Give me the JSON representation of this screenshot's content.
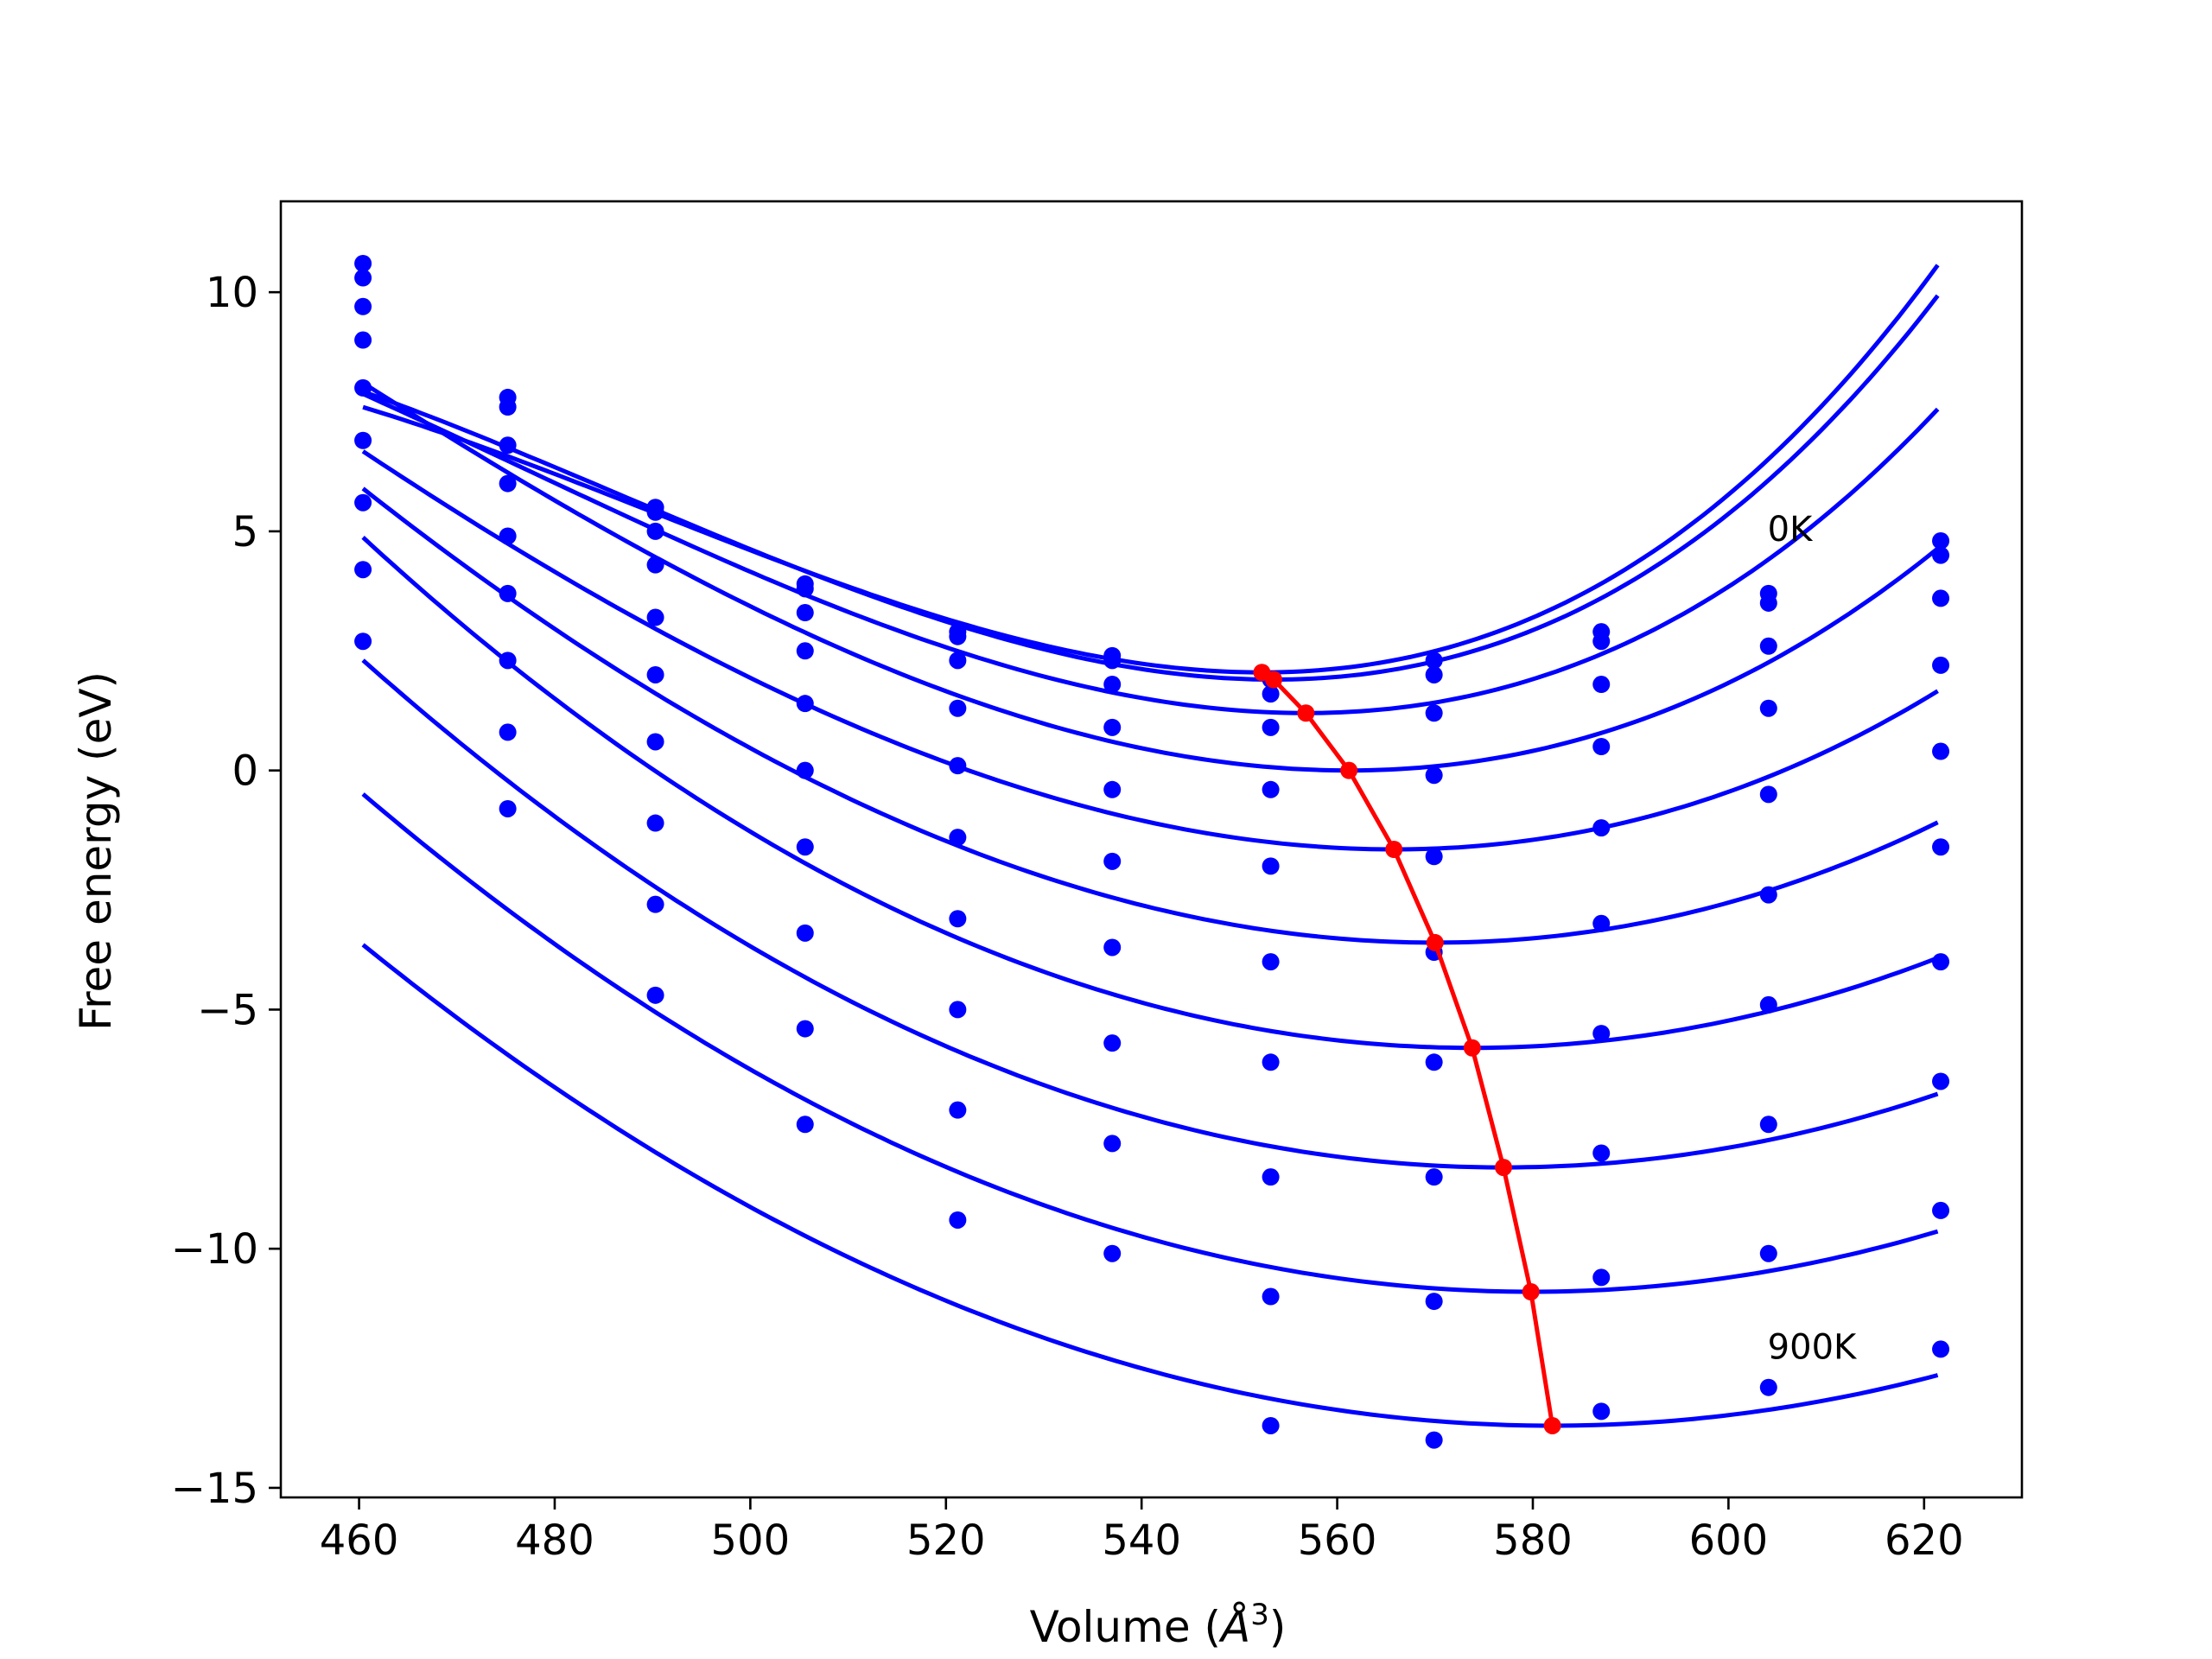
{
  "chart_data": {
    "type": "line",
    "xlabel_prefix": "Volume (",
    "xlabel_symbol": "Å",
    "xlabel_exp": "3",
    "xlabel_suffix": ")",
    "ylabel": "Free energy (eV)",
    "xlim": [
      452,
      630
    ],
    "ylim": [
      -15.2,
      11.9
    ],
    "xticks": [
      460,
      480,
      500,
      520,
      540,
      560,
      580,
      600,
      620
    ],
    "yticks": [
      -15,
      -10,
      -5,
      0,
      5,
      10
    ],
    "xtick_labels": [
      "460",
      "480",
      "500",
      "520",
      "540",
      "560",
      "580",
      "600",
      "620"
    ],
    "ytick_labels": [
      "−15",
      "−10",
      "−5",
      "0",
      "5",
      "10"
    ],
    "grid": false,
    "annotations": [
      {
        "text": "0K",
        "x": 604,
        "y": 4.8
      },
      {
        "text": "900K",
        "x": 604,
        "y": -12.3
      }
    ],
    "volumes": [
      460.4,
      475.2,
      490.3,
      505.6,
      521.2,
      537.0,
      553.2,
      569.9,
      587.0,
      604.1,
      621.7
    ],
    "series": [
      {
        "data": [
          10.6,
          7.8,
          5.5,
          3.9,
          2.9,
          2.4,
          1.9,
          2.3,
          2.9,
          3.7,
          4.8
        ],
        "fit": {
          "min_v": 552.3,
          "min_f": 2.05,
          "a": 0.0013,
          "b": 7e-06
        }
      },
      {
        "data": [
          10.3,
          7.6,
          5.4,
          3.8,
          2.8,
          2.3,
          1.6,
          2.0,
          2.7,
          3.5,
          4.5
        ],
        "fit": {
          "min_v": 553.5,
          "min_f": 1.9,
          "a": 0.0013,
          "b": 6.5e-06
        }
      },
      {
        "data": [
          9.7,
          6.8,
          5.0,
          3.3,
          2.3,
          1.8,
          0.9,
          1.2,
          1.8,
          2.6,
          3.6
        ],
        "fit": {
          "min_v": 556.8,
          "min_f": 1.2,
          "a": 0.0012,
          "b": 5e-06
        }
      },
      {
        "data": [
          9.0,
          6.0,
          4.3,
          2.5,
          1.3,
          0.9,
          -0.4,
          -0.1,
          0.5,
          1.3,
          2.2
        ],
        "fit": {
          "min_v": 561.2,
          "min_f": 0.0,
          "a": 0.0011,
          "b": 3e-06
        }
      },
      {
        "data": [
          8.0,
          4.9,
          3.2,
          1.4,
          0.1,
          -0.4,
          -2.0,
          -1.8,
          -1.2,
          -0.5,
          0.4
        ],
        "fit": {
          "min_v": 565.8,
          "min_f": -1.65,
          "a": 0.00096,
          "b": 2e-06
        }
      },
      {
        "data": [
          6.9,
          3.7,
          2.0,
          0.0,
          -1.4,
          -1.9,
          -4.0,
          -3.8,
          -3.2,
          -2.6,
          -1.6
        ],
        "fit": {
          "min_v": 570.0,
          "min_f": -3.6,
          "a": 0.0009,
          "b": 1e-06
        }
      },
      {
        "data": [
          5.6,
          2.3,
          0.6,
          -1.6,
          -3.1,
          -3.7,
          -6.1,
          -6.1,
          -5.5,
          -4.9,
          -4.0
        ],
        "fit": {
          "min_v": 573.8,
          "min_f": -5.8,
          "a": 0.00083,
          "b": 0
        }
      },
      {
        "data": [
          4.2,
          0.8,
          -1.1,
          -3.4,
          -5.0,
          -5.7,
          -8.5,
          -8.5,
          -8.0,
          -7.4,
          -6.5
        ],
        "fit": {
          "min_v": 577.0,
          "min_f": -8.3,
          "a": 0.00078,
          "b": 0
        }
      },
      {
        "data": [
          2.7,
          -0.8,
          -2.8,
          -5.4,
          -7.1,
          -7.8,
          -11.0,
          -11.1,
          -10.6,
          -10.1,
          -9.2
        ],
        "fit": {
          "min_v": 579.8,
          "min_f": -10.9,
          "a": 0.00073,
          "b": 0
        }
      },
      {
        "data": [
          null,
          null,
          -4.7,
          -7.4,
          -9.4,
          -10.1,
          -13.7,
          -14.0,
          -13.4,
          -12.9,
          -12.1
        ],
        "fit": {
          "min_v": 582.0,
          "min_f": -13.7,
          "a": 0.00068,
          "b": 0
        }
      }
    ],
    "minima": {
      "v": [
        552.3,
        553.5,
        556.8,
        561.2,
        565.8,
        570.0,
        573.8,
        577.0,
        579.8,
        582.0
      ],
      "f": [
        2.05,
        1.9,
        1.2,
        0.0,
        -1.65,
        -3.6,
        -5.8,
        -8.3,
        -10.9,
        -13.7
      ]
    },
    "colors": {
      "series": "#0000ff",
      "minima": "#ff0000",
      "axes": "#000000"
    }
  }
}
